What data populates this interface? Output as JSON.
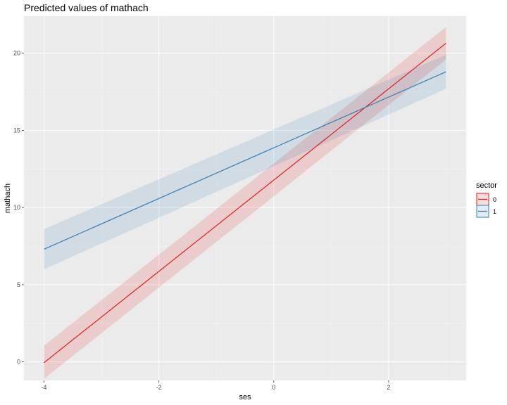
{
  "chart_data": {
    "type": "line",
    "title": "Predicted values of mathach",
    "xlabel": "ses",
    "ylabel": "mathach",
    "xlim": [
      -4.35,
      3.35
    ],
    "ylim": [
      -1.2,
      22.4
    ],
    "x_ticks": [
      -4,
      -2,
      0,
      2
    ],
    "y_ticks": [
      0,
      5,
      10,
      15,
      20
    ],
    "grid": true,
    "legend": {
      "title": "sector",
      "position": "right"
    },
    "series": [
      {
        "name": "0",
        "color": "#e41a1c",
        "x": [
          -4,
          3
        ],
        "y": [
          -0.05,
          20.65
        ],
        "ci_lower": [
          -1.1,
          19.6
        ],
        "ci_upper": [
          1.05,
          21.7
        ]
      },
      {
        "name": "1",
        "color": "#377eb8",
        "x": [
          -4,
          3
        ],
        "y": [
          7.3,
          18.8
        ],
        "ci_lower": [
          6.0,
          17.7
        ],
        "ci_upper": [
          8.6,
          19.9
        ]
      }
    ]
  }
}
